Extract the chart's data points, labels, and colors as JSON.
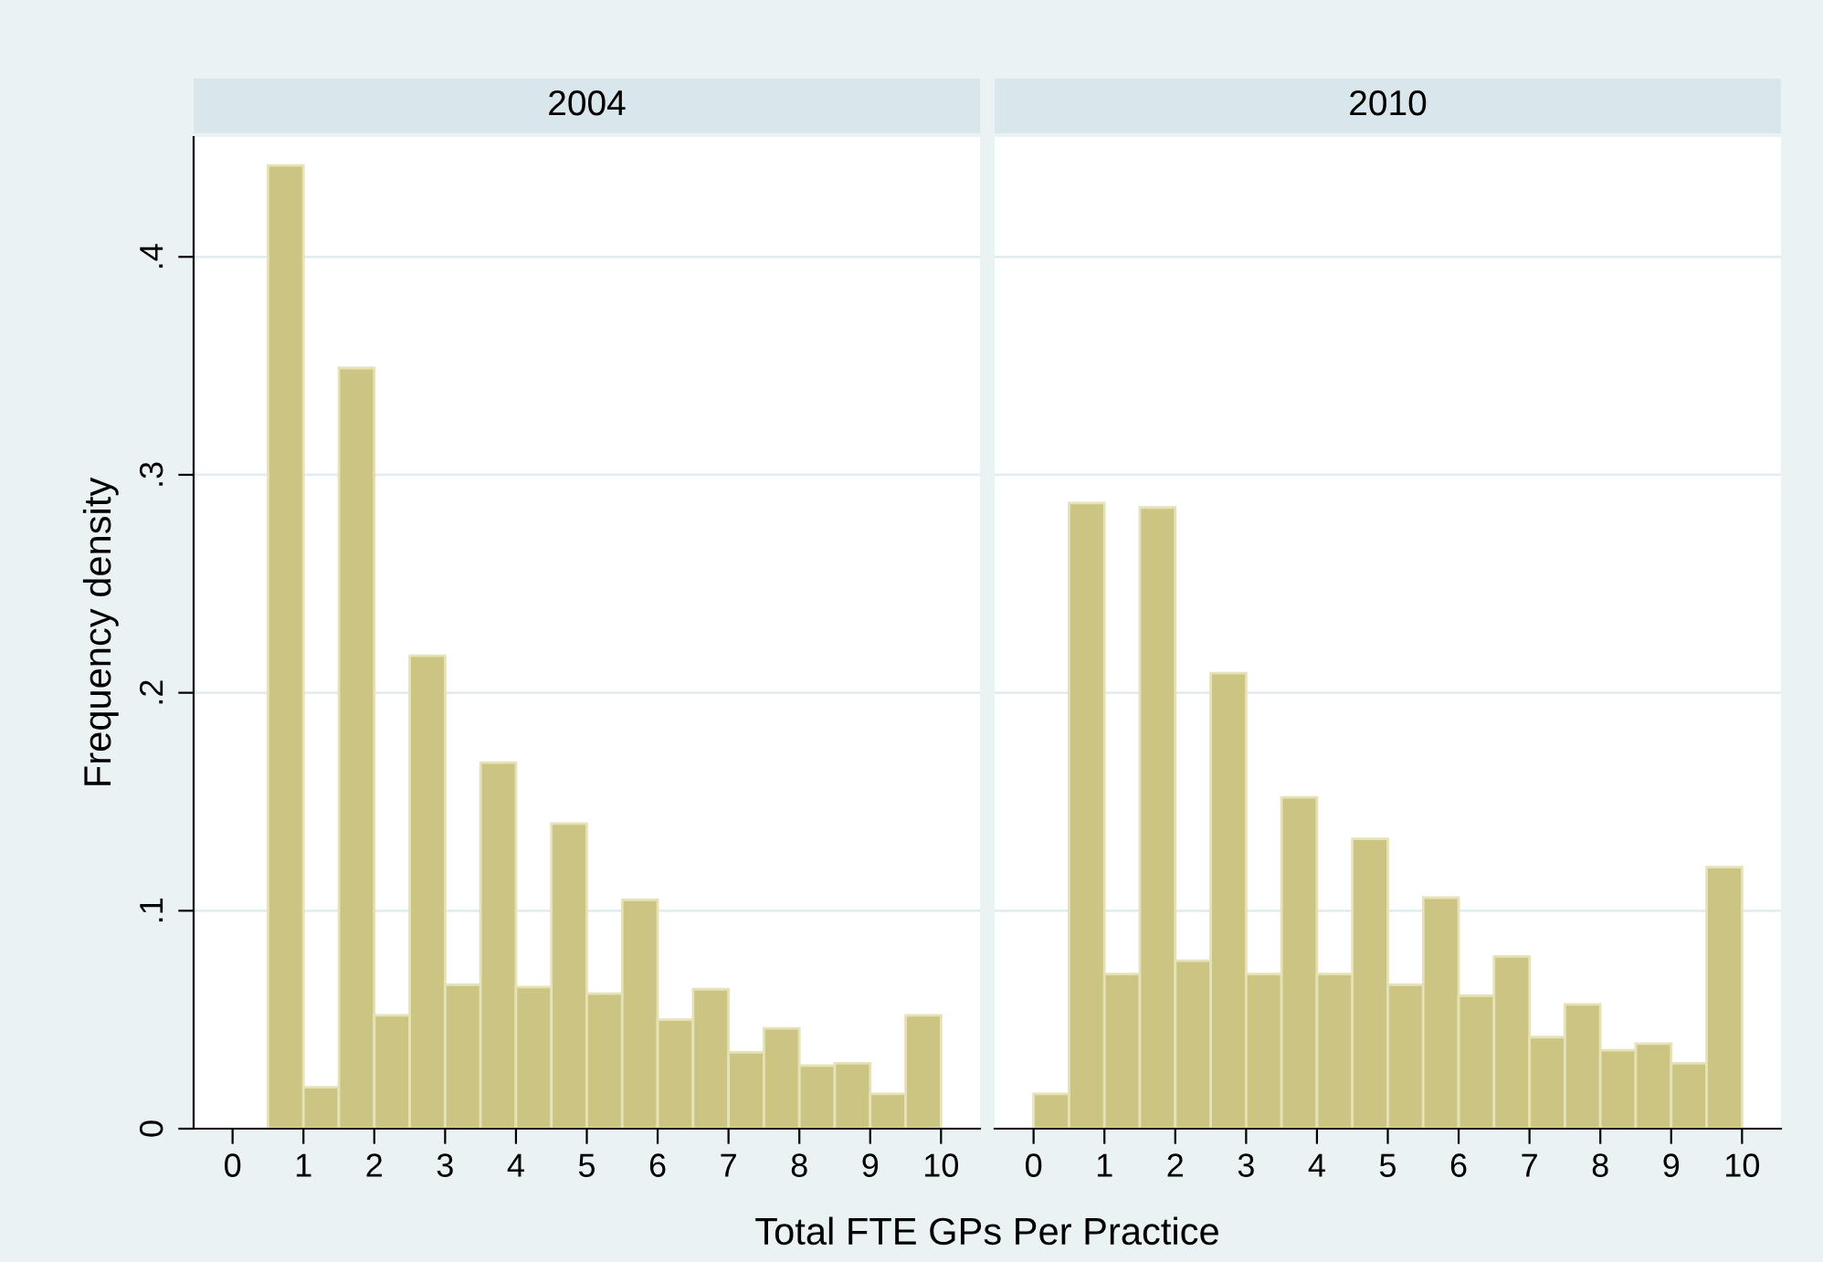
{
  "chart_data": [
    {
      "type": "histogram",
      "title": "2004",
      "ylabel": "Frequency density",
      "xlabel": "Total FTE GPs Per Practice",
      "color": "#cbc483",
      "bins": [
        0.5,
        1,
        1.5,
        2,
        2.5,
        3,
        3.5,
        4,
        4.5,
        5,
        5.5,
        6,
        6.5,
        7,
        7.5,
        8,
        8.5,
        9,
        9.5,
        10
      ],
      "values": [
        0.442,
        0.019,
        0.349,
        0.052,
        0.217,
        0.066,
        0.168,
        0.065,
        0.14,
        0.062,
        0.105,
        0.05,
        0.064,
        0.035,
        0.046,
        0.029,
        0.03,
        0.016,
        0.052
      ],
      "xlim": [
        -0.55,
        10.55
      ],
      "xticks": [
        0,
        1,
        2,
        3,
        4,
        5,
        6,
        7,
        8,
        9,
        10
      ],
      "ylim": [
        0,
        0.455
      ],
      "yticks": [
        {
          "value": 0,
          "label": "0"
        },
        {
          "value": 0.1,
          "label": ".1"
        },
        {
          "value": 0.2,
          "label": ".2"
        },
        {
          "value": 0.3,
          "label": ".3"
        },
        {
          "value": 0.4,
          "label": ".4"
        }
      ],
      "grid": "y"
    },
    {
      "type": "histogram",
      "title": "2010",
      "color": "#cbc483",
      "bins": [
        0,
        0.5,
        1,
        1.5,
        2,
        2.5,
        3,
        3.5,
        4,
        4.5,
        5,
        5.5,
        6,
        6.5,
        7,
        7.5,
        8,
        8.5,
        9,
        9.5,
        10
      ],
      "values": [
        0.016,
        0.287,
        0.071,
        0.285,
        0.077,
        0.209,
        0.071,
        0.152,
        0.071,
        0.133,
        0.066,
        0.106,
        0.061,
        0.079,
        0.042,
        0.057,
        0.036,
        0.039,
        0.03,
        0.12
      ],
      "xlim": [
        -0.55,
        10.55
      ],
      "xticks": [
        0,
        1,
        2,
        3,
        4,
        5,
        6,
        7,
        8,
        9,
        10
      ],
      "ylim": [
        0,
        0.455
      ],
      "yticks": [
        {
          "value": 0,
          "label": null
        },
        {
          "value": 0.1,
          "label": null
        },
        {
          "value": 0.2,
          "label": null
        },
        {
          "value": 0.3,
          "label": null
        },
        {
          "value": 0.4,
          "label": null
        }
      ],
      "grid": "y",
      "tick_labels": "x"
    }
  ]
}
